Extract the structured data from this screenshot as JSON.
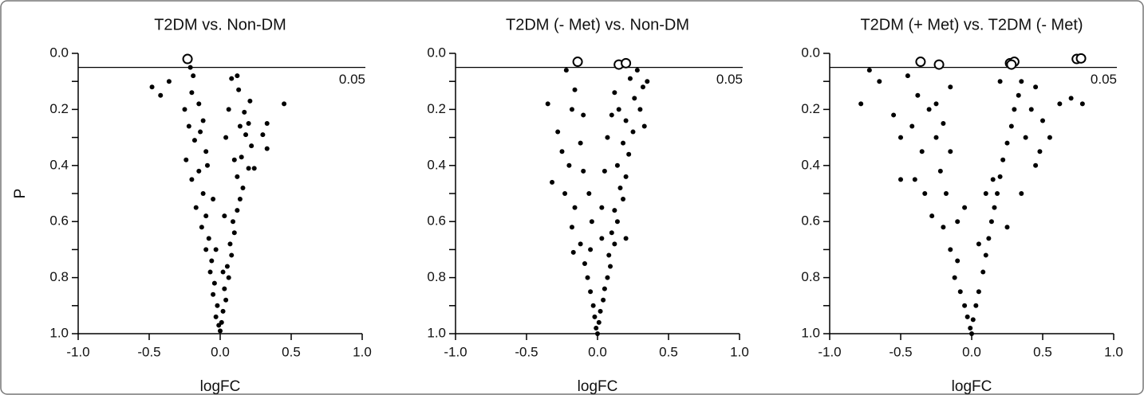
{
  "chart_data": [
    {
      "type": "scatter",
      "title": "T2DM vs. Non-DM",
      "xlabel": "logFC",
      "ylabel": "P",
      "y_inverted": true,
      "xlim": [
        -1,
        1
      ],
      "ylim": [
        0,
        1
      ],
      "xticks": [
        {
          "value": -1,
          "label": "-1.0"
        },
        -0.5,
        {
          "value": 0,
          "label": "0.0"
        },
        0.5,
        {
          "value": 1,
          "label": "1.0"
        }
      ],
      "yticks": [
        {
          "value": 0,
          "label": "0.0"
        },
        0.2,
        0.4,
        0.6,
        0.8,
        {
          "value": 1,
          "label": "1.0"
        }
      ],
      "yminor_ticks": [
        0.1,
        0.3,
        0.5,
        0.7,
        0.9
      ],
      "threshold": 0.05,
      "series": [
        {
          "marker": "filled",
          "color": "#000000",
          "x": [
            -0.48,
            -0.42,
            -0.36,
            -0.21,
            -0.19,
            -0.2,
            -0.25,
            -0.22,
            -0.18,
            -0.24,
            -0.15,
            -0.2,
            -0.12,
            -0.17,
            -0.1,
            -0.13,
            -0.08,
            -0.1,
            -0.06,
            -0.07,
            -0.04,
            -0.05,
            -0.02,
            -0.03,
            -0.01,
            0.0,
            0.01,
            0.02,
            0.04,
            0.03,
            0.06,
            0.05,
            0.08,
            0.07,
            0.1,
            0.09,
            0.12,
            0.14,
            0.16,
            0.12,
            0.2,
            0.15,
            0.22,
            0.18,
            0.2,
            0.17,
            0.21,
            0.13,
            0.08,
            0.12,
            0.45,
            0.33,
            0.33,
            0.3,
            0.24,
            -0.15,
            -0.12,
            -0.1,
            0.06,
            0.04,
            -0.05,
            0.03,
            -0.03,
            0.02,
            -0.09,
            0.1,
            -0.14,
            0.14
          ],
          "values": [
            0.12,
            0.15,
            0.1,
            0.05,
            0.08,
            0.14,
            0.2,
            0.26,
            0.31,
            0.38,
            0.42,
            0.45,
            0.5,
            0.55,
            0.58,
            0.62,
            0.66,
            0.7,
            0.74,
            0.78,
            0.82,
            0.86,
            0.9,
            0.94,
            0.97,
            0.99,
            0.96,
            0.92,
            0.88,
            0.84,
            0.8,
            0.76,
            0.72,
            0.68,
            0.64,
            0.6,
            0.56,
            0.52,
            0.48,
            0.44,
            0.41,
            0.37,
            0.33,
            0.29,
            0.25,
            0.21,
            0.17,
            0.13,
            0.09,
            0.08,
            0.18,
            0.25,
            0.34,
            0.29,
            0.41,
            0.18,
            0.24,
            0.35,
            0.2,
            0.3,
            0.52,
            0.58,
            0.7,
            0.78,
            0.4,
            0.38,
            0.28,
            0.26
          ]
        },
        {
          "marker": "open",
          "color": "#000000",
          "x": [
            -0.23
          ],
          "values": [
            0.02
          ]
        }
      ]
    },
    {
      "type": "scatter",
      "title": "T2DM (- Met) vs. Non-DM",
      "xlabel": "logFC",
      "y_inverted": true,
      "xlim": [
        -1,
        1
      ],
      "ylim": [
        0,
        1
      ],
      "xticks": [
        {
          "value": -1,
          "label": "-1.0"
        },
        -0.5,
        {
          "value": 0,
          "label": "0.0"
        },
        0.5,
        {
          "value": 1,
          "label": "1.0"
        }
      ],
      "yticks": [
        {
          "value": 0,
          "label": "0.0"
        },
        0.2,
        0.4,
        0.6,
        0.8,
        {
          "value": 1,
          "label": "1.0"
        }
      ],
      "yminor_ticks": [
        0.1,
        0.3,
        0.5,
        0.7,
        0.9
      ],
      "threshold": 0.05,
      "series": [
        {
          "marker": "filled",
          "color": "#000000",
          "x": [
            -0.35,
            -0.32,
            -0.22,
            -0.16,
            -0.18,
            -0.28,
            -0.25,
            -0.2,
            -0.23,
            -0.16,
            -0.18,
            -0.12,
            -0.17,
            -0.09,
            -0.07,
            -0.05,
            -0.03,
            -0.02,
            -0.01,
            0.0,
            0.01,
            0.02,
            0.04,
            0.05,
            0.07,
            0.09,
            0.08,
            0.12,
            0.1,
            0.14,
            0.12,
            0.18,
            0.16,
            0.2,
            0.14,
            0.22,
            0.18,
            0.25,
            0.2,
            0.3,
            0.26,
            0.32,
            0.35,
            0.28,
            0.23,
            0.12,
            0.1,
            0.07,
            0.05,
            0.03,
            -0.04,
            -0.06,
            -0.1,
            -0.12,
            -0.1,
            -0.05,
            0.03,
            0.2,
            0.15,
            0.33
          ],
          "values": [
            0.18,
            0.46,
            0.06,
            0.13,
            0.2,
            0.28,
            0.35,
            0.4,
            0.5,
            0.55,
            0.62,
            0.68,
            0.71,
            0.75,
            0.8,
            0.85,
            0.9,
            0.94,
            0.98,
            1.0,
            0.96,
            0.92,
            0.88,
            0.84,
            0.8,
            0.76,
            0.72,
            0.68,
            0.64,
            0.6,
            0.56,
            0.52,
            0.48,
            0.44,
            0.4,
            0.36,
            0.32,
            0.28,
            0.24,
            0.2,
            0.16,
            0.12,
            0.1,
            0.06,
            0.09,
            0.14,
            0.22,
            0.3,
            0.42,
            0.55,
            0.6,
            0.5,
            0.42,
            0.32,
            0.22,
            0.7,
            0.66,
            0.66,
            0.2,
            0.26
          ]
        },
        {
          "marker": "open",
          "color": "#000000",
          "x": [
            -0.14,
            0.15,
            0.2
          ],
          "values": [
            0.03,
            0.04,
            0.035
          ]
        }
      ]
    },
    {
      "type": "scatter",
      "title": "T2DM (+ Met) vs. T2DM (- Met)",
      "xlabel": "logFC",
      "y_inverted": true,
      "xlim": [
        -1,
        1
      ],
      "ylim": [
        0,
        1
      ],
      "xticks": [
        {
          "value": -1,
          "label": "-1.0"
        },
        -0.5,
        {
          "value": 0,
          "label": "0.0"
        },
        0.5,
        {
          "value": 1,
          "label": "1.0"
        }
      ],
      "yticks": [
        {
          "value": 0,
          "label": "0.0"
        },
        0.2,
        0.4,
        0.6,
        0.8,
        {
          "value": 1,
          "label": "1.0"
        }
      ],
      "yminor_ticks": [
        0.1,
        0.3,
        0.5,
        0.7,
        0.9
      ],
      "threshold": 0.05,
      "series": [
        {
          "marker": "filled",
          "color": "#000000",
          "x": [
            -0.78,
            -0.72,
            -0.65,
            -0.55,
            -0.5,
            -0.45,
            -0.42,
            -0.4,
            -0.38,
            -0.35,
            -0.33,
            -0.3,
            -0.28,
            -0.25,
            -0.22,
            -0.2,
            -0.18,
            -0.15,
            -0.12,
            -0.1,
            -0.08,
            -0.05,
            -0.03,
            -0.01,
            0.0,
            0.01,
            0.03,
            0.05,
            0.08,
            0.1,
            0.12,
            0.14,
            0.16,
            0.18,
            0.2,
            0.22,
            0.25,
            0.28,
            0.3,
            0.33,
            0.35,
            0.38,
            0.42,
            0.45,
            0.48,
            0.5,
            0.55,
            0.62,
            0.7,
            0.78,
            0.45,
            0.35,
            0.25,
            0.15,
            -0.05,
            -0.15,
            -0.25,
            -0.1,
            0.05,
            0.1,
            -0.2,
            -0.5,
            0.2,
            -0.15
          ],
          "values": [
            0.18,
            0.06,
            0.1,
            0.22,
            0.3,
            0.08,
            0.26,
            0.45,
            0.15,
            0.35,
            0.5,
            0.2,
            0.58,
            0.3,
            0.42,
            0.62,
            0.5,
            0.7,
            0.8,
            0.74,
            0.85,
            0.9,
            0.94,
            0.98,
            1.0,
            0.95,
            0.9,
            0.85,
            0.78,
            0.72,
            0.66,
            0.6,
            0.55,
            0.5,
            0.44,
            0.38,
            0.32,
            0.26,
            0.2,
            0.15,
            0.1,
            0.3,
            0.2,
            0.12,
            0.35,
            0.24,
            0.3,
            0.18,
            0.16,
            0.18,
            0.4,
            0.5,
            0.62,
            0.45,
            0.55,
            0.35,
            0.18,
            0.6,
            0.68,
            0.5,
            0.25,
            0.45,
            0.1,
            0.12
          ]
        },
        {
          "marker": "open",
          "color": "#000000",
          "x": [
            -0.36,
            -0.23,
            0.27,
            0.3,
            0.28,
            0.74,
            0.77
          ],
          "values": [
            0.03,
            0.04,
            0.035,
            0.03,
            0.04,
            0.02,
            0.018
          ]
        }
      ]
    }
  ]
}
